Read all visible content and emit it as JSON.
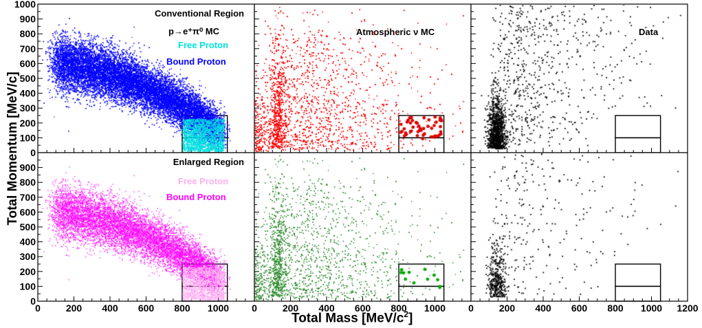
{
  "chart_data": {
    "type": "scatter",
    "xlabel": "Total Mass [MeV/c",
    "xlabel_sup": "2",
    "xlabel_close": "]",
    "ylabel": "Total Momentum [MeV/c]",
    "xlim": [
      0,
      1200
    ],
    "ylim": [
      0,
      1000
    ],
    "grid": false,
    "panel_xlim": [
      [
        0,
        1200
      ],
      [
        0,
        1200
      ],
      [
        0,
        1200
      ]
    ],
    "y_ticks": [
      "0",
      "100",
      "200",
      "300",
      "400",
      "500",
      "600",
      "700",
      "800",
      "900",
      "1000"
    ],
    "x_ticks_panel": [
      "0",
      "200",
      "400",
      "600",
      "800",
      "1000"
    ],
    "x_ticks_last": [
      "0",
      "200",
      "400",
      "600",
      "800",
      "1000",
      "1200"
    ],
    "signal_box": {
      "x": [
        800,
        1050
      ],
      "y_lower": [
        0,
        100
      ],
      "y_upper": [
        100,
        250
      ]
    },
    "rows": [
      {
        "region": "Conventional Region",
        "mc_label": "p→e⁺π⁰ MC",
        "free_label": "Free Proton",
        "bound_label": "Bound Proton",
        "atm_label": "Atmospheric ν MC",
        "data_label": "Data",
        "colors": {
          "bound": "#0000ff",
          "free": "#00e0e0",
          "atm": "#ff0000",
          "atm_box": "#dd0000",
          "data": "#000000"
        },
        "bound_density": 28000,
        "free_density": 1600,
        "atm_density": 60000,
        "atm_box_events": 48,
        "data_events": 1700
      },
      {
        "region": "Enlarged Region",
        "mc_label": "",
        "free_label": "Free Proton",
        "bound_label": "Bound Proton",
        "atm_label": "",
        "data_label": "",
        "colors": {
          "bound": "#ff00ff",
          "free": "#ffb0f0",
          "atm": "#2e8b2e",
          "atm_box": "#00aa00",
          "data": "#000000"
        },
        "bound_density": 9000,
        "free_density": 1200,
        "atm_density": 25000,
        "atm_box_events": 12,
        "data_events": 650
      }
    ]
  }
}
